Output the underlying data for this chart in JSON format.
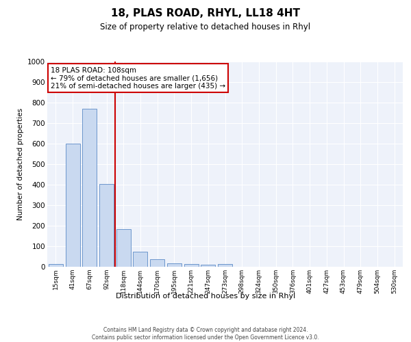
{
  "title": "18, PLAS ROAD, RHYL, LL18 4HT",
  "subtitle": "Size of property relative to detached houses in Rhyl",
  "xlabel_bottom": "Distribution of detached houses by size in Rhyl",
  "ylabel": "Number of detached properties",
  "bar_color": "#c9d9f0",
  "bar_edge_color": "#5a8ac6",
  "categories": [
    "15sqm",
    "41sqm",
    "67sqm",
    "92sqm",
    "118sqm",
    "144sqm",
    "170sqm",
    "195sqm",
    "221sqm",
    "247sqm",
    "273sqm",
    "298sqm",
    "324sqm",
    "350sqm",
    "376sqm",
    "401sqm",
    "427sqm",
    "453sqm",
    "479sqm",
    "504sqm",
    "530sqm"
  ],
  "values": [
    15,
    600,
    770,
    405,
    185,
    75,
    38,
    18,
    12,
    10,
    13,
    0,
    0,
    0,
    0,
    0,
    0,
    0,
    0,
    0,
    0
  ],
  "ylim": [
    0,
    1000
  ],
  "yticks": [
    0,
    100,
    200,
    300,
    400,
    500,
    600,
    700,
    800,
    900,
    1000
  ],
  "vline_x": 3.5,
  "vline_color": "#cc0000",
  "annotation_text": "18 PLAS ROAD: 108sqm\n← 79% of detached houses are smaller (1,656)\n21% of semi-detached houses are larger (435) →",
  "annotation_box_color": "#cc0000",
  "footer": "Contains HM Land Registry data © Crown copyright and database right 2024.\nContains public sector information licensed under the Open Government Licence v3.0.",
  "bg_color": "#eef2fa",
  "fig_bg_color": "#ffffff"
}
